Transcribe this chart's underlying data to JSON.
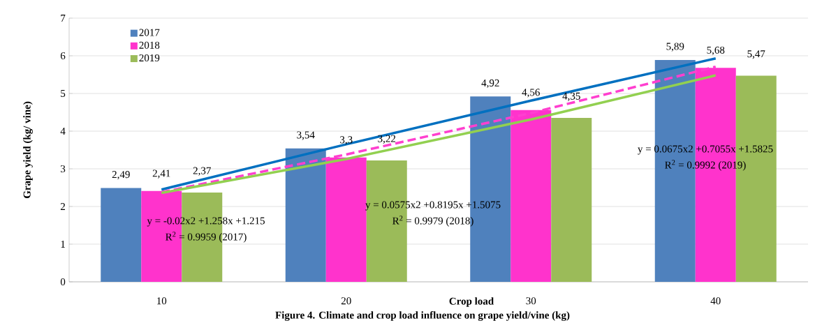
{
  "chart_data": {
    "type": "bar",
    "title": "Figure 4. Climate and crop load influence on grape yield/vine (kg)",
    "xlabel": "Crop load",
    "ylabel": "Grape yield (kg/ vine)",
    "categories": [
      "10",
      "20",
      "30",
      "40"
    ],
    "series": [
      {
        "name": "2017",
        "color": "#4f81bd",
        "values": [
          2.49,
          3.54,
          4.92,
          5.89
        ],
        "value_labels": [
          "2,49",
          "3,54",
          "4,92",
          "5,89"
        ]
      },
      {
        "name": "2018",
        "color": "#ff33cc",
        "values": [
          2.41,
          3.3,
          4.56,
          5.68
        ],
        "value_labels": [
          "2,41",
          "3,3",
          "4,56",
          "5,68"
        ]
      },
      {
        "name": "2019",
        "color": "#9bbb59",
        "values": [
          2.37,
          3.22,
          4.35,
          5.47
        ],
        "value_labels": [
          "2,37",
          "3,22",
          "4,35",
          "5,47"
        ]
      },
      {
        "type": "line",
        "color": "#0070c0",
        "line_style": "solid",
        "x": [
          "10",
          "20",
          "30",
          "40"
        ],
        "values": [
          2.45,
          3.65,
          4.81,
          5.93
        ]
      },
      {
        "type": "line",
        "color": "#ff3fcf",
        "line_style": "dashed",
        "x": [
          "10",
          "20",
          "30",
          "40"
        ],
        "values": [
          2.38,
          3.38,
          4.48,
          5.71
        ]
      },
      {
        "type": "line",
        "color": "#92d050",
        "line_style": "solid",
        "x": [
          "10",
          "20",
          "30",
          "40"
        ],
        "values": [
          2.36,
          3.26,
          4.31,
          5.48
        ]
      }
    ],
    "annotations": [
      "y = -0.02x2 +1.258x +1.215",
      "R$^{2}$ = 0.9959 (2017)",
      "y = 0.0575x2 +0.8195x +1.5075",
      "R$^{2}$ = 0.9979 (2018)",
      "y = 0.0675x2 +0.7055x +1.5825",
      "R$^{2}$ = 0.9992 (2019)"
    ],
    "ylim": [
      0,
      7
    ],
    "yticks": [
      0,
      1,
      2,
      3,
      4,
      5,
      6,
      7
    ],
    "grid": "y",
    "legend": "top left"
  }
}
